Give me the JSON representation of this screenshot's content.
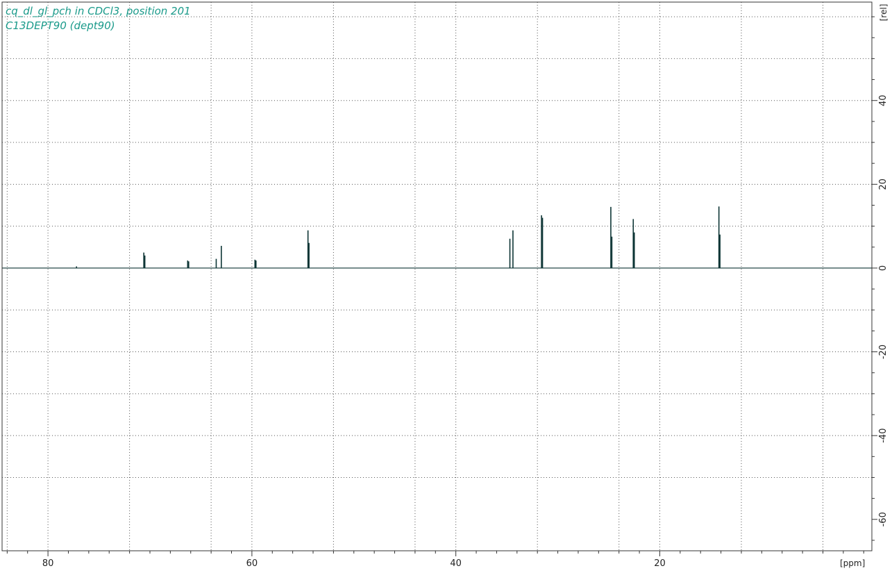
{
  "chart_data": {
    "type": "line",
    "title_lines": [
      "cq_dl_gl_pch in CDCl3, position 201",
      "C13DEPT90 (dept90)"
    ],
    "xlabel": "[ppm]",
    "ylabel": "[rel]",
    "xlim": [
      84.5,
      -0.8
    ],
    "ylim": [
      -67.5,
      63.5
    ],
    "x_axis_reversed": true,
    "x_major_ticks": [
      80,
      60,
      40,
      20
    ],
    "x_grid": [
      84,
      72,
      64,
      52,
      44,
      32,
      24,
      12,
      4
    ],
    "y_major_ticks": [
      -60,
      -40,
      -20,
      0,
      20,
      40
    ],
    "y_grid": [
      -50,
      -40,
      -30,
      -20,
      -10,
      10,
      20,
      30,
      40,
      50,
      60
    ],
    "grid": true,
    "series_color": "#0d3535",
    "peaks": [
      {
        "x": 77.2,
        "y": 0.4
      },
      {
        "x": 70.6,
        "y": 3.7
      },
      {
        "x": 70.5,
        "y": 3.0
      },
      {
        "x": 66.3,
        "y": 1.8
      },
      {
        "x": 66.2,
        "y": 1.6
      },
      {
        "x": 63.5,
        "y": 2.2
      },
      {
        "x": 63.0,
        "y": 5.3
      },
      {
        "x": 59.7,
        "y": 2.0
      },
      {
        "x": 59.6,
        "y": 1.8
      },
      {
        "x": 54.5,
        "y": 9.0
      },
      {
        "x": 54.4,
        "y": 6.0
      },
      {
        "x": 34.7,
        "y": 7.0
      },
      {
        "x": 34.4,
        "y": 9.0
      },
      {
        "x": 31.6,
        "y": 12.6
      },
      {
        "x": 31.5,
        "y": 12.0
      },
      {
        "x": 24.8,
        "y": 14.6
      },
      {
        "x": 24.7,
        "y": 7.5
      },
      {
        "x": 22.6,
        "y": 11.7
      },
      {
        "x": 22.5,
        "y": 8.5
      },
      {
        "x": 14.2,
        "y": 14.7
      },
      {
        "x": 14.1,
        "y": 8.0
      }
    ]
  }
}
